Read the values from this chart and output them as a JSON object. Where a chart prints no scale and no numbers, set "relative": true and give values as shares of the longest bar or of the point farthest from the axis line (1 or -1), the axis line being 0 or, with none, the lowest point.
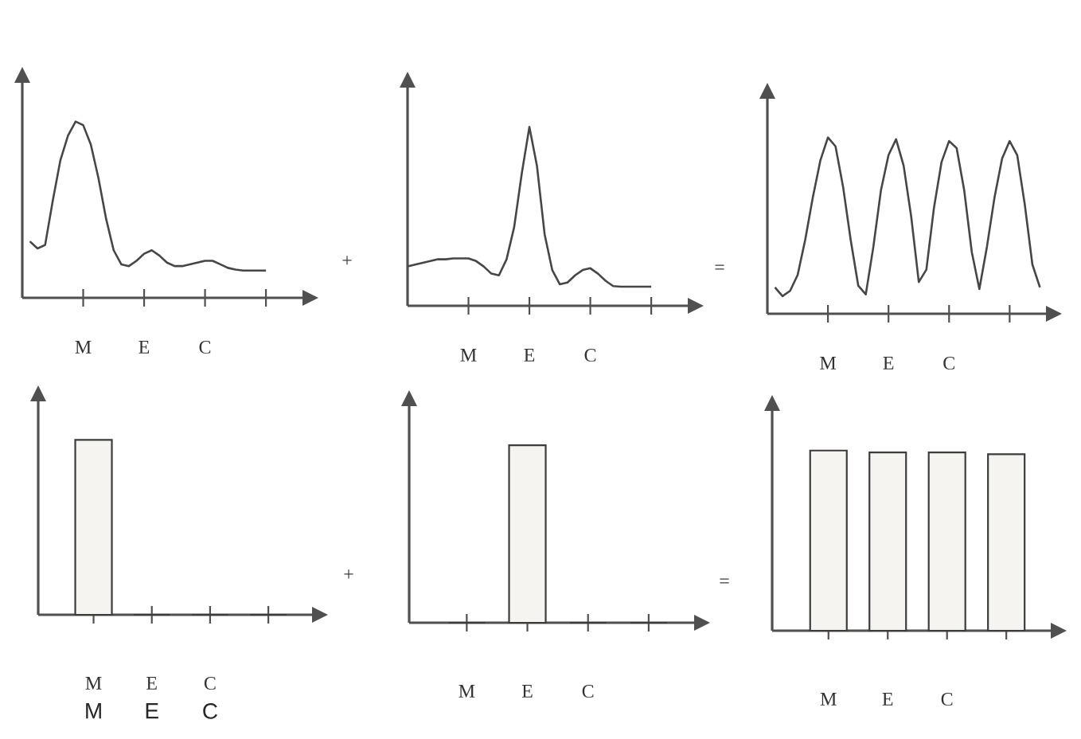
{
  "chart_data": [
    {
      "type": "line",
      "relative": true,
      "color": "#464646",
      "categories": [
        null,
        null,
        null,
        null,
        null,
        null,
        null,
        null,
        "M",
        null,
        null,
        null,
        null,
        null,
        null,
        null,
        "E",
        null,
        null,
        null,
        null,
        null,
        null,
        null,
        "C",
        null,
        null,
        null,
        null,
        null,
        null,
        null,
        null,
        null,
        null,
        null,
        null
      ],
      "values": [
        null,
        0.32,
        0.28,
        0.3,
        0.55,
        0.78,
        0.92,
        1,
        0.98,
        0.87,
        0.68,
        0.45,
        0.27,
        0.19,
        0.18,
        0.21,
        0.25,
        0.27,
        0.24,
        0.2,
        0.18,
        0.18,
        0.19,
        0.2,
        0.21,
        0.21,
        0.19,
        0.17,
        0.16,
        0.155,
        0.155,
        0.155,
        0.155,
        null,
        null,
        null,
        null
      ]
    },
    {
      "type": "line",
      "relative": true,
      "color": "#464646",
      "categories": [
        null,
        null,
        null,
        null,
        null,
        null,
        null,
        null,
        "M",
        null,
        null,
        null,
        null,
        null,
        null,
        null,
        "E",
        null,
        null,
        null,
        null,
        null,
        null,
        null,
        "C",
        null,
        null,
        null,
        null,
        null,
        null,
        null,
        null,
        null,
        null,
        null,
        null
      ],
      "values": [
        0.22,
        0.23,
        0.24,
        0.25,
        0.26,
        0.26,
        0.265,
        0.265,
        0.265,
        0.25,
        0.22,
        0.18,
        0.17,
        0.26,
        0.44,
        0.74,
        1,
        0.78,
        0.4,
        0.2,
        0.12,
        0.13,
        0.17,
        0.2,
        0.21,
        0.18,
        0.14,
        0.11,
        0.107,
        0.107,
        0.107,
        0.107,
        0.107,
        null,
        null,
        null,
        null
      ],
      "annotations": [
        "+"
      ]
    },
    {
      "type": "line",
      "relative": true,
      "color": "#464646",
      "categories": [
        null,
        null,
        null,
        null,
        null,
        null,
        null,
        null,
        "M",
        null,
        null,
        null,
        null,
        null,
        null,
        null,
        "E",
        null,
        null,
        null,
        null,
        null,
        null,
        null,
        "C",
        null,
        null,
        null,
        null,
        null,
        null,
        null,
        null,
        null,
        null,
        null,
        null
      ],
      "values": [
        null,
        0.15,
        0.1,
        0.13,
        0.22,
        0.42,
        0.66,
        0.87,
        1,
        0.95,
        0.72,
        0.42,
        0.16,
        0.11,
        0.38,
        0.7,
        0.9,
        0.99,
        0.84,
        0.55,
        0.18,
        0.25,
        0.6,
        0.86,
        0.98,
        0.94,
        0.7,
        0.35,
        0.14,
        0.38,
        0.66,
        0.88,
        0.98,
        0.9,
        0.62,
        0.28,
        0.15
      ],
      "annotations": [
        "="
      ]
    },
    {
      "type": "bar",
      "relative": true,
      "color": "#3c3c3c",
      "categories": [
        "M",
        "E",
        "C",
        null
      ],
      "values": [
        1,
        0,
        0,
        0
      ],
      "annotations": [
        "M",
        "E",
        "C"
      ]
    },
    {
      "type": "bar",
      "relative": true,
      "color": "#3c3c3c",
      "categories": [
        "M",
        "E",
        "C",
        null
      ],
      "values": [
        0,
        1,
        0,
        0
      ],
      "annotations": [
        "+"
      ]
    },
    {
      "type": "bar",
      "relative": true,
      "color": "#3c3c3c",
      "categories": [
        "M",
        "E",
        "C",
        null
      ],
      "values": [
        1,
        0.99,
        0.99,
        0.98
      ],
      "annotations": [
        "="
      ]
    }
  ]
}
